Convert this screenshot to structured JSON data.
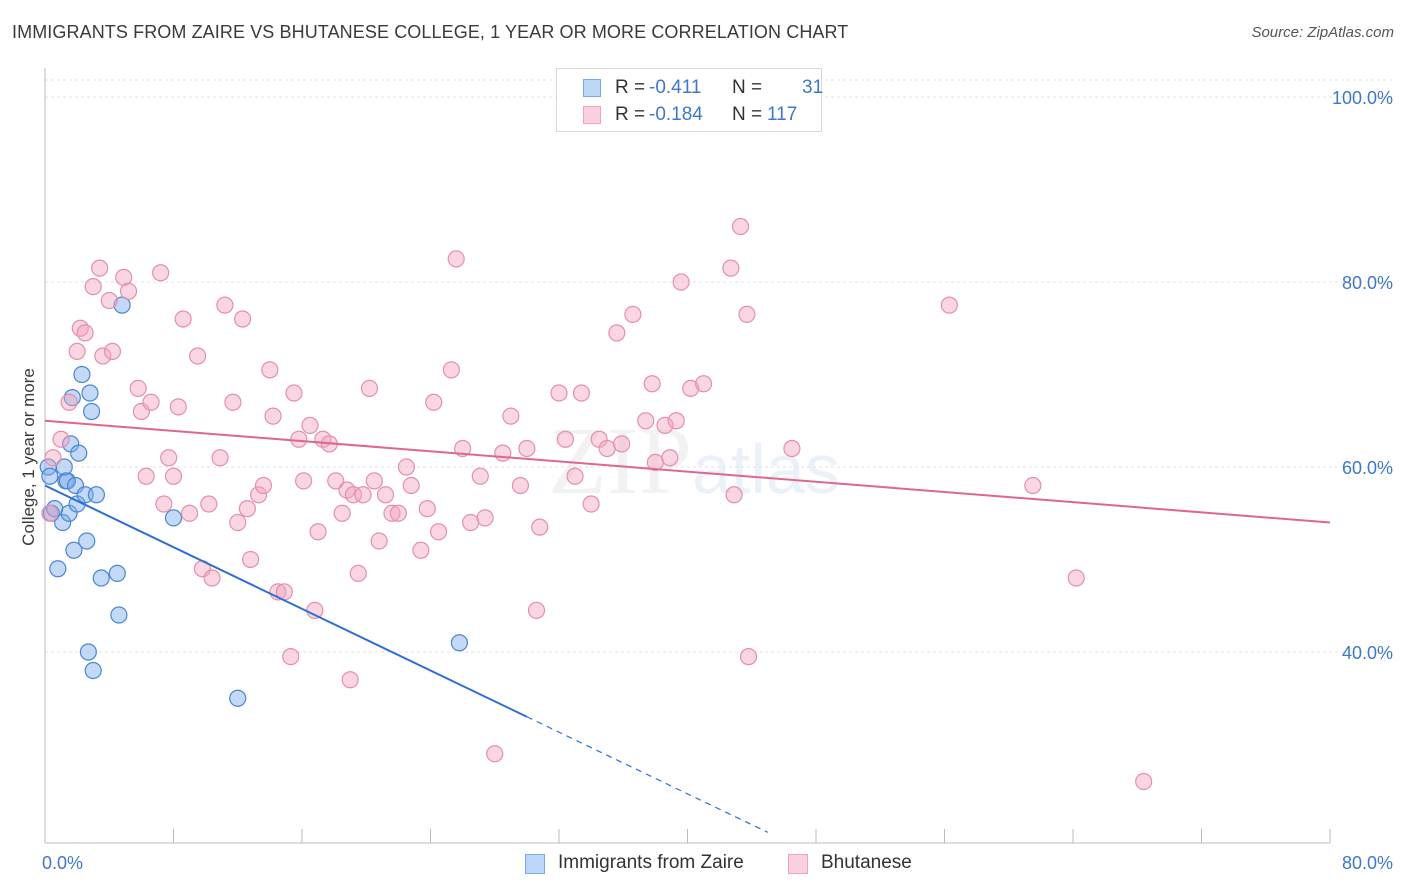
{
  "title": "IMMIGRANTS FROM ZAIRE VS BHUTANESE COLLEGE, 1 YEAR OR MORE CORRELATION CHART",
  "source": "Source: ZipAtlas.com",
  "watermark": {
    "zip": "ZIP",
    "atlas": "atlas"
  },
  "legend_top": {
    "r_label": "R =",
    "n_label": "N =",
    "rows": [
      {
        "name": "Immigrants from Zaire",
        "r": "-0.411",
        "n": "31"
      },
      {
        "name": "Bhutanese",
        "r": "-0.184",
        "n": "117"
      }
    ]
  },
  "chart_data": {
    "type": "scatter",
    "title": "IMMIGRANTS FROM ZAIRE VS BHUTANESE COLLEGE, 1 YEAR OR MORE CORRELATION CHART",
    "xlabel": "",
    "ylabel": "College, 1 year or more",
    "xlim": [
      0,
      80
    ],
    "ylim": [
      20,
      100
    ],
    "x_tick_labels": [
      "0.0%",
      "80.0%"
    ],
    "y_ticks": [
      40,
      60,
      80,
      100
    ],
    "y_tick_labels": [
      "40.0%",
      "60.0%",
      "80.0%",
      "100.0%"
    ],
    "grid": true,
    "legend": "bottom",
    "colors": {
      "zaire": "#7aaae8",
      "zaire_line": "#2f6fd0",
      "bhutanese": "#f2a3bd",
      "bhutanese_line": "#e0668f",
      "axis_text": "#3f78c8"
    },
    "series": [
      {
        "name": "Immigrants from Zaire",
        "r": -0.411,
        "n": 31,
        "trend": {
          "x0": 0,
          "y0": 58,
          "x1": 30,
          "y1": 33,
          "dashed_to_x": 45
        },
        "points": [
          [
            0.2,
            60
          ],
          [
            0.3,
            59
          ],
          [
            0.4,
            55
          ],
          [
            0.8,
            49
          ],
          [
            1.1,
            54
          ],
          [
            1.3,
            58.5
          ],
          [
            1.4,
            58.5
          ],
          [
            1.5,
            55
          ],
          [
            1.6,
            62.5
          ],
          [
            1.7,
            67.5
          ],
          [
            1.8,
            51
          ],
          [
            1.9,
            58
          ],
          [
            2.0,
            56
          ],
          [
            2.1,
            61.5
          ],
          [
            2.3,
            70
          ],
          [
            2.5,
            57
          ],
          [
            2.6,
            52
          ],
          [
            2.7,
            40
          ],
          [
            2.8,
            68
          ],
          [
            2.9,
            66
          ],
          [
            3.0,
            38
          ],
          [
            3.5,
            48
          ],
          [
            4.5,
            48.5
          ],
          [
            4.6,
            44
          ],
          [
            4.8,
            77.5
          ],
          [
            8.0,
            54.5
          ],
          [
            12.0,
            35
          ],
          [
            25.8,
            41
          ],
          [
            0.6,
            55.5
          ],
          [
            1.2,
            60
          ],
          [
            3.2,
            57
          ]
        ]
      },
      {
        "name": "Bhutanese",
        "r": -0.184,
        "n": 117,
        "trend": {
          "x0": 0,
          "y0": 65,
          "x1": 80,
          "y1": 54
        },
        "points": [
          [
            0.3,
            55
          ],
          [
            0.5,
            61
          ],
          [
            1.0,
            63
          ],
          [
            1.5,
            67
          ],
          [
            2.0,
            72.5
          ],
          [
            2.2,
            75
          ],
          [
            2.5,
            74.5
          ],
          [
            3.0,
            79.5
          ],
          [
            3.4,
            81.5
          ],
          [
            3.6,
            72
          ],
          [
            4.0,
            78
          ],
          [
            4.2,
            72.5
          ],
          [
            4.9,
            80.5
          ],
          [
            5.2,
            79
          ],
          [
            5.8,
            68.5
          ],
          [
            6.0,
            66
          ],
          [
            6.3,
            59
          ],
          [
            6.6,
            67
          ],
          [
            7.2,
            81
          ],
          [
            7.4,
            56
          ],
          [
            7.7,
            61
          ],
          [
            8.0,
            59
          ],
          [
            8.3,
            66.5
          ],
          [
            8.6,
            76
          ],
          [
            9.0,
            55
          ],
          [
            9.5,
            72
          ],
          [
            9.8,
            49
          ],
          [
            10.2,
            56
          ],
          [
            10.4,
            48
          ],
          [
            10.9,
            61
          ],
          [
            11.2,
            77.5
          ],
          [
            11.7,
            67
          ],
          [
            12.0,
            54
          ],
          [
            12.3,
            76
          ],
          [
            12.6,
            55.5
          ],
          [
            12.8,
            50
          ],
          [
            13.3,
            57
          ],
          [
            13.6,
            58
          ],
          [
            14.0,
            70.5
          ],
          [
            14.2,
            65.5
          ],
          [
            14.5,
            46.5
          ],
          [
            14.9,
            46.5
          ],
          [
            15.3,
            39.5
          ],
          [
            15.5,
            68
          ],
          [
            15.8,
            63
          ],
          [
            16.1,
            58.5
          ],
          [
            16.5,
            64.5
          ],
          [
            16.8,
            44.5
          ],
          [
            17.0,
            53
          ],
          [
            17.3,
            63
          ],
          [
            17.7,
            62.5
          ],
          [
            18.1,
            58.5
          ],
          [
            18.5,
            55
          ],
          [
            18.8,
            57.5
          ],
          [
            19.0,
            37
          ],
          [
            19.2,
            57
          ],
          [
            19.5,
            48.5
          ],
          [
            19.8,
            57
          ],
          [
            20.2,
            68.5
          ],
          [
            20.5,
            58.5
          ],
          [
            20.8,
            52
          ],
          [
            21.2,
            57
          ],
          [
            21.6,
            55
          ],
          [
            22.0,
            55
          ],
          [
            22.5,
            60
          ],
          [
            22.8,
            58
          ],
          [
            23.4,
            51
          ],
          [
            23.8,
            55.5
          ],
          [
            24.2,
            67
          ],
          [
            24.5,
            53
          ],
          [
            25.3,
            70.5
          ],
          [
            25.6,
            82.5
          ],
          [
            26.0,
            62
          ],
          [
            26.5,
            54
          ],
          [
            27.1,
            59
          ],
          [
            27.4,
            54.5
          ],
          [
            28.0,
            29
          ],
          [
            28.5,
            61.5
          ],
          [
            29.0,
            65.5
          ],
          [
            29.6,
            58
          ],
          [
            30.0,
            62
          ],
          [
            30.8,
            53.5
          ],
          [
            30.6,
            44.5
          ],
          [
            32.0,
            68
          ],
          [
            32.4,
            63
          ],
          [
            33.0,
            59
          ],
          [
            33.4,
            68
          ],
          [
            34.0,
            56
          ],
          [
            34.5,
            63
          ],
          [
            35.0,
            62
          ],
          [
            35.6,
            74.5
          ],
          [
            35.9,
            62.5
          ],
          [
            36.6,
            76.5
          ],
          [
            37.4,
            65
          ],
          [
            37.8,
            69
          ],
          [
            38.0,
            60.5
          ],
          [
            38.6,
            64.5
          ],
          [
            38.9,
            61
          ],
          [
            39.3,
            65
          ],
          [
            39.6,
            80
          ],
          [
            40.2,
            68.5
          ],
          [
            41.0,
            69
          ],
          [
            42.7,
            81.5
          ],
          [
            42.9,
            57
          ],
          [
            43.3,
            86
          ],
          [
            43.7,
            76.5
          ],
          [
            43.8,
            39.5
          ],
          [
            46.5,
            62
          ],
          [
            56.3,
            77.5
          ],
          [
            61.5,
            58
          ],
          [
            64.2,
            48
          ],
          [
            68.4,
            26
          ]
        ]
      }
    ]
  }
}
